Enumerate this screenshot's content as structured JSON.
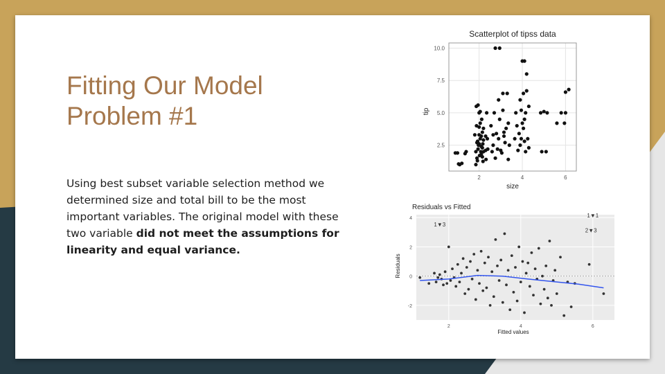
{
  "slide": {
    "title_lines": [
      "Fitting Our Model",
      "Problem #1"
    ],
    "body_text": "Using best subset variable selection method we determined size and total bill to be the most important variables. The original model with these two variable ",
    "body_bold": "did not meet the assumptions for linearity and equal variance."
  },
  "chart_data": [
    {
      "type": "scatter",
      "title": "Scatterplot of tipss data",
      "xlabel": "size",
      "ylabel": "tip",
      "xlim": [
        0.6,
        6.5
      ],
      "ylim": [
        0.5,
        10.4
      ],
      "xticks": [
        2,
        4,
        6
      ],
      "yticks": [
        2.5,
        5.0,
        7.5,
        10.0
      ],
      "ytick_labels": [
        "2.5",
        "5.0",
        "7.5",
        "10.0"
      ],
      "grid": true,
      "points": [
        [
          0.9,
          1.9
        ],
        [
          1.0,
          1.9
        ],
        [
          1.1,
          1.0
        ],
        [
          1.2,
          1.1
        ],
        [
          1.35,
          1.85
        ],
        [
          1.4,
          2.0
        ],
        [
          1.05,
          1.05
        ],
        [
          1.85,
          1.0
        ],
        [
          1.9,
          1.5
        ],
        [
          1.95,
          2.2
        ],
        [
          2.0,
          2.6
        ],
        [
          2.05,
          3.0
        ],
        [
          2.1,
          2.4
        ],
        [
          2.15,
          3.5
        ],
        [
          2.2,
          2.9
        ],
        [
          1.8,
          3.3
        ],
        [
          1.88,
          4.0
        ],
        [
          1.93,
          2.8
        ],
        [
          2.02,
          1.7
        ],
        [
          2.08,
          2.0
        ],
        [
          2.18,
          1.25
        ],
        [
          2.12,
          4.5
        ],
        [
          2.0,
          5.0
        ],
        [
          1.87,
          5.5
        ],
        [
          1.95,
          5.6
        ],
        [
          2.05,
          5.1
        ],
        [
          2.2,
          3.8
        ],
        [
          2.15,
          2.3
        ],
        [
          1.9,
          2.7
        ],
        [
          1.85,
          2.0
        ],
        [
          2.1,
          1.8
        ],
        [
          2.2,
          2.0
        ],
        [
          2.0,
          3.3
        ],
        [
          2.0,
          3.9
        ],
        [
          2.05,
          4.2
        ],
        [
          1.92,
          1.3
        ],
        [
          2.15,
          1.6
        ],
        [
          2.1,
          3.2
        ],
        [
          1.97,
          2.5
        ],
        [
          2.17,
          2.6
        ],
        [
          2.3,
          3.2
        ],
        [
          2.3,
          2.1
        ],
        [
          2.32,
          1.4
        ],
        [
          2.35,
          5.0
        ],
        [
          2.4,
          2.2
        ],
        [
          2.38,
          3.0
        ],
        [
          2.55,
          4.0
        ],
        [
          2.6,
          2.0
        ],
        [
          2.65,
          2.5
        ],
        [
          2.7,
          5.0
        ],
        [
          2.75,
          1.5
        ],
        [
          2.8,
          3.4
        ],
        [
          2.85,
          2.2
        ],
        [
          2.9,
          3.0
        ],
        [
          2.95,
          4.5
        ],
        [
          3.0,
          2.1
        ],
        [
          3.05,
          1.9
        ],
        [
          3.1,
          6.5
        ],
        [
          3.15,
          3.2
        ],
        [
          3.2,
          2.7
        ],
        [
          3.25,
          3.8
        ],
        [
          3.3,
          6.5
        ],
        [
          3.35,
          1.4
        ],
        [
          3.4,
          2.5
        ],
        [
          3.35,
          4.2
        ],
        [
          2.9,
          6.0
        ],
        [
          2.75,
          10.0
        ],
        [
          2.95,
          10.0
        ],
        [
          3.1,
          5.2
        ],
        [
          2.65,
          3.3
        ],
        [
          3.15,
          3.5
        ],
        [
          3.65,
          3.0
        ],
        [
          3.7,
          5.0
        ],
        [
          3.75,
          4.0
        ],
        [
          3.8,
          2.1
        ],
        [
          3.85,
          3.4
        ],
        [
          3.9,
          6.0
        ],
        [
          3.95,
          5.2
        ],
        [
          4.0,
          9.0
        ],
        [
          4.05,
          3.8
        ],
        [
          4.1,
          4.5
        ],
        [
          4.15,
          2.0
        ],
        [
          4.2,
          6.7
        ],
        [
          4.1,
          9.0
        ],
        [
          3.9,
          2.5
        ],
        [
          4.0,
          4.2
        ],
        [
          4.25,
          3.0
        ],
        [
          4.3,
          5.5
        ],
        [
          4.2,
          8.0
        ],
        [
          4.1,
          2.8
        ],
        [
          4.15,
          5.0
        ],
        [
          3.95,
          3.0
        ],
        [
          4.05,
          6.5
        ],
        [
          4.3,
          2.3
        ],
        [
          4.85,
          5.0
        ],
        [
          4.9,
          2.0
        ],
        [
          5.0,
          5.1
        ],
        [
          5.1,
          2.0
        ],
        [
          5.15,
          5.0
        ],
        [
          5.6,
          4.2
        ],
        [
          5.8,
          5.0
        ],
        [
          5.95,
          4.2
        ],
        [
          6.0,
          6.6
        ],
        [
          6.15,
          6.8
        ],
        [
          6.0,
          5.0
        ]
      ]
    },
    {
      "type": "scatter",
      "title": "Residuals vs Fitted",
      "xlabel": "Fitted values",
      "ylabel": "Residuals",
      "xlim": [
        1.1,
        6.6
      ],
      "ylim": [
        -3.0,
        4.2
      ],
      "xticks": [
        2,
        4,
        6
      ],
      "yticks": [
        -2,
        0,
        2,
        4
      ],
      "grid": true,
      "annotations": [
        {
          "label": "1▼3",
          "x": 1.75,
          "y": 3.4
        },
        {
          "label": "1▼1",
          "x": 6.0,
          "y": 4.0
        },
        {
          "label": "2▼3",
          "x": 5.95,
          "y": 3.0
        }
      ],
      "smooth_line": [
        [
          1.2,
          -0.3
        ],
        [
          2.0,
          -0.2
        ],
        [
          2.8,
          0.05
        ],
        [
          3.5,
          0.0
        ],
        [
          4.2,
          -0.2
        ],
        [
          5.0,
          -0.4
        ],
        [
          5.6,
          -0.55
        ],
        [
          6.3,
          -0.8
        ]
      ],
      "points": [
        [
          1.2,
          -0.1
        ],
        [
          1.45,
          -0.5
        ],
        [
          1.6,
          0.2
        ],
        [
          1.65,
          -0.4
        ],
        [
          1.7,
          -0.1
        ],
        [
          1.75,
          0.1
        ],
        [
          1.8,
          -0.2
        ],
        [
          1.85,
          -0.6
        ],
        [
          1.9,
          0.3
        ],
        [
          1.95,
          -0.5
        ],
        [
          2.0,
          2.0
        ],
        [
          2.05,
          -0.3
        ],
        [
          2.1,
          0.5
        ],
        [
          2.15,
          -0.1
        ],
        [
          2.2,
          -0.7
        ],
        [
          2.25,
          0.8
        ],
        [
          2.3,
          -0.4
        ],
        [
          2.35,
          0.2
        ],
        [
          2.4,
          1.2
        ],
        [
          2.45,
          -1.2
        ],
        [
          2.5,
          0.6
        ],
        [
          2.55,
          -0.9
        ],
        [
          2.6,
          1.0
        ],
        [
          2.65,
          -0.2
        ],
        [
          2.7,
          1.5
        ],
        [
          2.75,
          -1.6
        ],
        [
          2.8,
          0.4
        ],
        [
          2.85,
          -0.5
        ],
        [
          2.9,
          1.7
        ],
        [
          2.95,
          -1.0
        ],
        [
          3.0,
          0.9
        ],
        [
          3.05,
          -0.8
        ],
        [
          3.1,
          1.3
        ],
        [
          3.15,
          -2.0
        ],
        [
          3.2,
          0.3
        ],
        [
          3.25,
          -1.4
        ],
        [
          3.3,
          2.5
        ],
        [
          3.35,
          0.7
        ],
        [
          3.4,
          -0.3
        ],
        [
          3.45,
          1.1
        ],
        [
          3.5,
          -1.8
        ],
        [
          3.55,
          2.9
        ],
        [
          3.6,
          -0.6
        ],
        [
          3.65,
          0.4
        ],
        [
          3.7,
          -2.3
        ],
        [
          3.75,
          1.4
        ],
        [
          3.8,
          -1.1
        ],
        [
          3.85,
          0.6
        ],
        [
          3.9,
          -1.7
        ],
        [
          3.95,
          2.0
        ],
        [
          4.0,
          -0.4
        ],
        [
          4.05,
          1.0
        ],
        [
          4.1,
          -2.5
        ],
        [
          4.15,
          0.2
        ],
        [
          4.2,
          0.9
        ],
        [
          4.25,
          -0.7
        ],
        [
          4.3,
          1.6
        ],
        [
          4.35,
          -1.3
        ],
        [
          4.4,
          0.5
        ],
        [
          4.45,
          -0.2
        ],
        [
          4.5,
          1.9
        ],
        [
          4.55,
          -1.9
        ],
        [
          4.6,
          0.0
        ],
        [
          4.65,
          -0.9
        ],
        [
          4.7,
          0.7
        ],
        [
          4.75,
          -1.5
        ],
        [
          4.8,
          2.4
        ],
        [
          4.85,
          -2.0
        ],
        [
          4.9,
          -0.3
        ],
        [
          4.95,
          0.4
        ],
        [
          5.0,
          -1.2
        ],
        [
          5.1,
          1.3
        ],
        [
          5.2,
          -2.7
        ],
        [
          5.3,
          -0.4
        ],
        [
          5.4,
          -2.1
        ],
        [
          5.5,
          -0.5
        ],
        [
          5.9,
          0.8
        ],
        [
          6.3,
          -1.2
        ]
      ]
    }
  ]
}
